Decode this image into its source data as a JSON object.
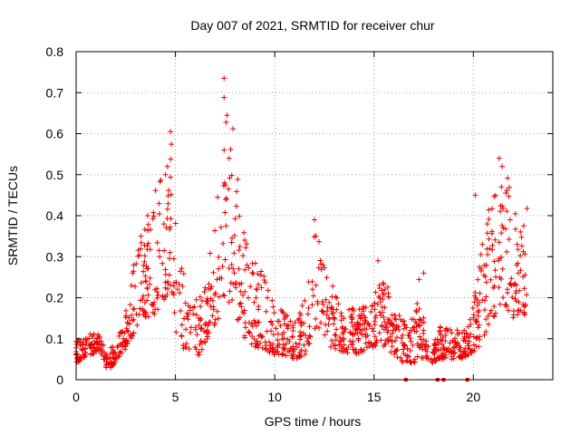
{
  "chart_data": {
    "type": "scatter",
    "title": "Day 007 of 2021, SRMTID for receiver chur",
    "xlabel": "GPS time / hours",
    "ylabel": "SRMTID / TECUs",
    "xlim": [
      0,
      24
    ],
    "ylim": [
      0,
      0.8
    ],
    "xticks": [
      0,
      5,
      10,
      15,
      20
    ],
    "xtick_labels": [
      "0",
      "5",
      "10",
      "15",
      "20"
    ],
    "yticks": [
      0,
      0.1,
      0.2,
      0.3,
      0.4,
      0.5,
      0.6,
      0.7,
      0.8
    ],
    "ytick_labels": [
      "0",
      "0.1",
      "0.2",
      "0.3",
      "0.4",
      "0.5",
      "0.6",
      "0.7",
      "0.8"
    ],
    "grid": true,
    "marker": "plus",
    "color": "#ee0000",
    "series": [
      {
        "name": "SRMTID",
        "envelope_x": [
          0,
          0.3,
          0.8,
          1.2,
          1.5,
          1.8,
          2.2,
          2.6,
          3.0,
          3.5,
          4.0,
          4.5,
          4.8,
          5.0,
          5.3,
          5.7,
          6.2,
          6.8,
          7.2,
          7.6,
          8.0,
          8.5,
          9.0,
          9.5,
          10.0,
          10.5,
          11.0,
          11.5,
          12.0,
          12.3,
          12.8,
          13.3,
          14.0,
          14.5,
          15.0,
          15.5,
          16.0,
          16.5,
          16.8,
          17.0,
          17.3,
          17.6,
          17.9,
          18.3,
          18.8,
          19.3,
          19.8,
          20.3,
          20.7,
          21.0,
          21.3,
          21.6,
          22.0,
          22.3,
          22.7
        ],
        "envelope_low": [
          0.04,
          0.05,
          0.06,
          0.07,
          0.03,
          0.03,
          0.06,
          0.08,
          0.12,
          0.15,
          0.16,
          0.2,
          0.22,
          0.12,
          0.08,
          0.06,
          0.06,
          0.12,
          0.15,
          0.18,
          0.15,
          0.1,
          0.08,
          0.07,
          0.06,
          0.06,
          0.05,
          0.06,
          0.1,
          0.12,
          0.08,
          0.07,
          0.06,
          0.07,
          0.08,
          0.08,
          0.06,
          0.04,
          0.04,
          0.04,
          0.05,
          0.05,
          0.04,
          0.05,
          0.05,
          0.05,
          0.06,
          0.08,
          0.12,
          0.15,
          0.18,
          0.18,
          0.15,
          0.15,
          0.16
        ],
        "envelope_high": [
          0.1,
          0.1,
          0.12,
          0.12,
          0.07,
          0.08,
          0.12,
          0.2,
          0.32,
          0.4,
          0.48,
          0.52,
          0.6,
          0.4,
          0.3,
          0.2,
          0.2,
          0.32,
          0.48,
          0.72,
          0.55,
          0.38,
          0.3,
          0.25,
          0.2,
          0.16,
          0.15,
          0.2,
          0.38,
          0.35,
          0.25,
          0.18,
          0.18,
          0.18,
          0.22,
          0.28,
          0.16,
          0.16,
          0.12,
          0.2,
          0.26,
          0.1,
          0.08,
          0.13,
          0.13,
          0.12,
          0.14,
          0.3,
          0.42,
          0.45,
          0.45,
          0.53,
          0.45,
          0.35,
          0.42
        ],
        "spikes": [
          [
            4.75,
            0.605
          ],
          [
            7.45,
            0.735
          ],
          [
            7.45,
            0.688
          ],
          [
            7.6,
            0.645
          ],
          [
            7.55,
            0.628
          ],
          [
            7.9,
            0.612
          ],
          [
            7.45,
            0.56
          ],
          [
            7.7,
            0.54
          ],
          [
            21.3,
            0.54
          ],
          [
            21.45,
            0.52
          ],
          [
            20.1,
            0.45
          ],
          [
            12.0,
            0.39
          ],
          [
            3.6,
            0.4
          ],
          [
            15.2,
            0.29
          ],
          [
            17.5,
            0.26
          ],
          [
            4.6,
            0.52
          ],
          [
            4.5,
            0.5
          ]
        ]
      }
    ],
    "bad_data_marks_x": [
      16.6,
      18.2,
      18.5,
      19.7
    ]
  }
}
